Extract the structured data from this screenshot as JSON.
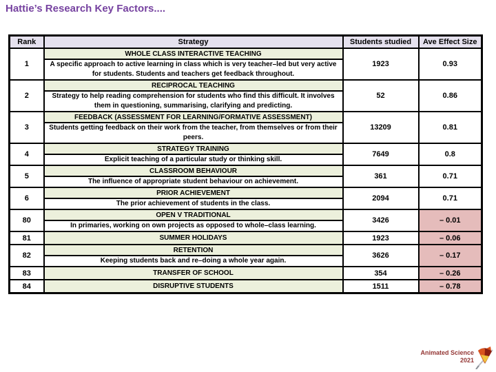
{
  "title": "Hattie’s Research Key Factors....",
  "table": {
    "headers": [
      "Rank",
      "Strategy",
      "Students studied",
      "Ave Effect Size"
    ],
    "rows": [
      {
        "rank": "1",
        "strategy": "WHOLE CLASS INTERACTIVE TEACHING",
        "description": "A specific approach to active learning in class which is very teacher–led but very active for students. Students and teachers get feedback throughout.",
        "students": "1923",
        "effect": "0.93",
        "negative": false
      },
      {
        "rank": "2",
        "strategy": "RECIPROCAL TEACHING",
        "description": "Strategy to help reading comprehension for students who find this difficult. It involves them in questioning, summarising, clarifying and predicting.",
        "students": "52",
        "effect": "0.86",
        "negative": false
      },
      {
        "rank": "3",
        "strategy": "FEEDBACK (ASSESSMENT FOR LEARNING/FORMATIVE ASSESSMENT)",
        "description": "Students getting feedback on their work from the teacher, from themselves or from their peers.",
        "students": "13209",
        "effect": "0.81",
        "negative": false
      },
      {
        "rank": "4",
        "strategy": "STRATEGY TRAINING",
        "description": "Explicit teaching of a particular study or thinking skill.",
        "students": "7649",
        "effect": "0.8",
        "negative": false
      },
      {
        "rank": "5",
        "strategy": "CLASSROOM BEHAVIOUR",
        "description": "The influence of appropriate student behaviour on achievement.",
        "students": "361",
        "effect": "0.71",
        "negative": false
      },
      {
        "rank": "6",
        "strategy": "PRIOR ACHIEVEMENT",
        "description": "The prior achievement of students in the class.",
        "students": "2094",
        "effect": "0.71",
        "negative": false
      },
      {
        "rank": "80",
        "strategy": "OPEN V TRADITIONAL",
        "description": "In primaries, working on own projects as opposed to whole–class learning.",
        "students": "3426",
        "effect": "– 0.01",
        "negative": true
      },
      {
        "rank": "81",
        "strategy": "SUMMER HOLIDAYS",
        "description": "",
        "students": "1923",
        "effect": "– 0.06",
        "negative": true
      },
      {
        "rank": "82",
        "strategy": "RETENTION",
        "description": "Keeping students back and re–doing a whole year again.",
        "students": "3626",
        "effect": "– 0.17",
        "negative": true
      },
      {
        "rank": "83",
        "strategy": "TRANSFER OF SCHOOL",
        "description": "",
        "students": "354",
        "effect": "– 0.26",
        "negative": true
      },
      {
        "rank": "84",
        "strategy": "DISRUPTIVE STUDENTS",
        "description": "",
        "students": "1511",
        "effect": "– 0.78",
        "negative": true
      }
    ]
  },
  "footer": {
    "line1": "Animated Science",
    "line2": "2021"
  },
  "colors": {
    "title_text": "#7642a0",
    "header_bg": "#e5e1ee",
    "strategy_bg": "#ecf0dc",
    "negative_bg": "#e5bcbb",
    "border": "#000000",
    "footer_text": "#943634"
  }
}
